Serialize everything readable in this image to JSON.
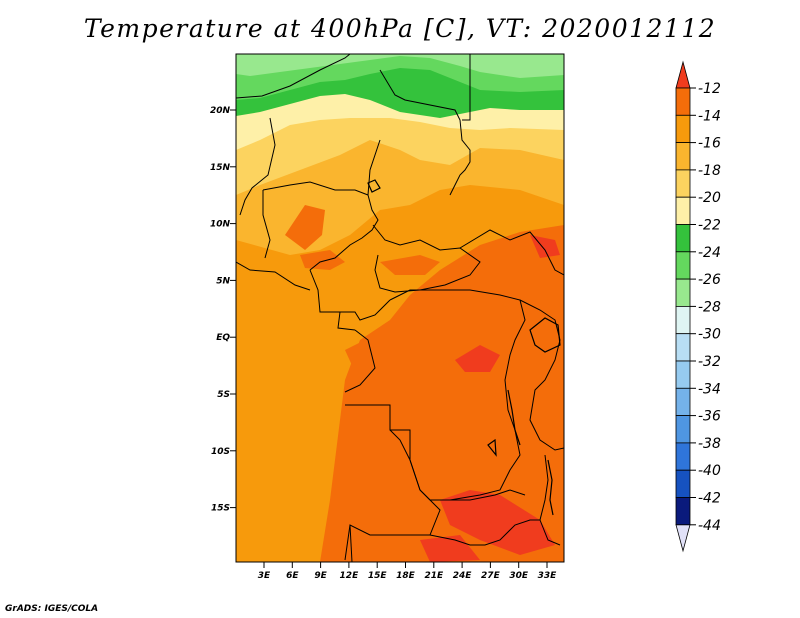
{
  "title": "Temperature at 400hPa [C], VT: 2020012112",
  "footer": "GrADS: IGES/COLA",
  "map": {
    "lat_labels": [
      "20N",
      "15N",
      "10N",
      "5N",
      "EQ",
      "5S",
      "10S",
      "15S"
    ],
    "lon_labels": [
      "3E",
      "6E",
      "9E",
      "12E",
      "15E",
      "18E",
      "21E",
      "24E",
      "27E",
      "30E",
      "33E"
    ]
  },
  "colorbar": {
    "labels": [
      "-12",
      "-14",
      "-16",
      "-18",
      "-20",
      "-22",
      "-24",
      "-26",
      "-28",
      "-30",
      "-32",
      "-34",
      "-36",
      "-38",
      "-40",
      "-42",
      "-44"
    ],
    "colors": [
      "#f03c1e",
      "#f46d0a",
      "#f79a0c",
      "#fab52e",
      "#fcd35f",
      "#fef0a8",
      "#34c23c",
      "#64d85e",
      "#98e88e",
      "#dff5f3",
      "#b8def4",
      "#96cbf0",
      "#74b2ea",
      "#4f96e2",
      "#2f75da",
      "#1652c0",
      "#0a1a7c",
      "#e1e1f8"
    ]
  }
}
